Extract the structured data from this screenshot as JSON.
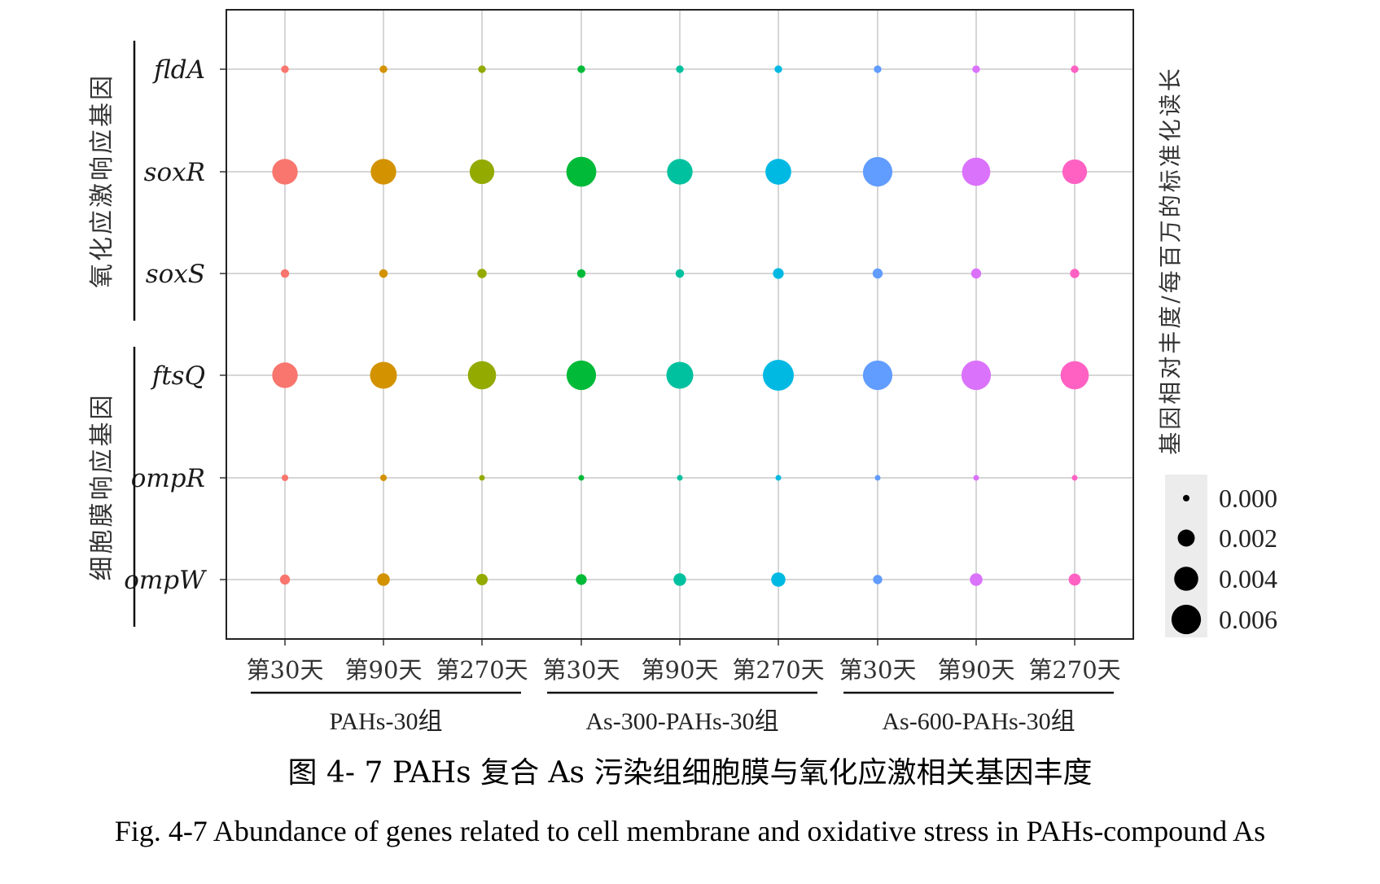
{
  "chart_data": {
    "type": "scatter",
    "x_categories": [
      "第30天",
      "第90天",
      "第270天",
      "第30天",
      "第90天",
      "第270天",
      "第30天",
      "第90天",
      "第270天"
    ],
    "x_groups": [
      {
        "label": "PAHs-30组",
        "span": [
          0,
          2
        ]
      },
      {
        "label": "As-300-PAHs-30组",
        "span": [
          3,
          5
        ]
      },
      {
        "label": "As-600-PAHs-30组",
        "span": [
          6,
          8
        ]
      }
    ],
    "y_categories": [
      "fldA",
      "soxR",
      "soxS",
      "ftsQ",
      "ompR",
      "ompW"
    ],
    "y_groups": [
      {
        "label": "氧化应激响应基因",
        "span": [
          0,
          2
        ]
      },
      {
        "label": "细胞膜响应基因",
        "span": [
          3,
          5
        ]
      }
    ],
    "series_colors": [
      "#F8766D",
      "#D39200",
      "#93AA00",
      "#00BA38",
      "#00C19F",
      "#00B9E3",
      "#619CFF",
      "#DB72FB",
      "#FF61C3"
    ],
    "values": [
      [
        0.0004,
        0.0004,
        0.0004,
        0.0004,
        0.0004,
        0.0004,
        0.0004,
        0.0004,
        0.0004
      ],
      [
        0.0045,
        0.0045,
        0.0042,
        0.0062,
        0.0045,
        0.0046,
        0.006,
        0.0055,
        0.0042
      ],
      [
        0.0005,
        0.0005,
        0.0006,
        0.0005,
        0.0005,
        0.0008,
        0.0007,
        0.0007,
        0.0006
      ],
      [
        0.0045,
        0.005,
        0.0055,
        0.006,
        0.005,
        0.0066,
        0.006,
        0.006,
        0.0055
      ],
      [
        0.0003,
        0.0003,
        0.0002,
        0.0002,
        0.0002,
        0.0002,
        0.0002,
        0.0002,
        0.0002
      ],
      [
        0.0007,
        0.0011,
        0.0009,
        0.0008,
        0.0011,
        0.0014,
        0.0006,
        0.0011,
        0.001
      ]
    ],
    "legend": {
      "title": "基因相对丰度/每百万的标准化读长",
      "entries": [
        "0.000",
        "0.002",
        "0.004",
        "0.006"
      ],
      "entry_values": [
        0.0,
        0.002,
        0.004,
        0.006
      ],
      "position": "right"
    },
    "grid": true
  },
  "captions": {
    "cn": "图 4- 7 PAHs 复合 As 污染组细胞膜与氧化应激相关基因丰度",
    "en": "Fig. 4-7 Abundance of  genes related to cell membrane and oxidative stress in PAHs-compound As"
  }
}
